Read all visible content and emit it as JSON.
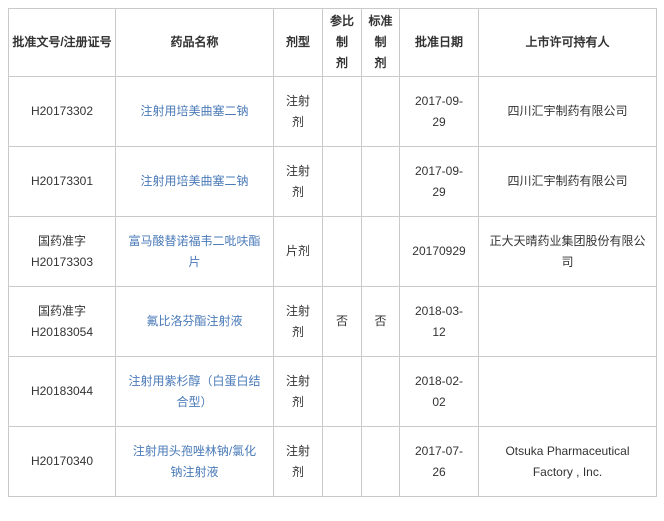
{
  "colors": {
    "border": "#c9c9c9",
    "text": "#333333",
    "link_blue": "#4a7ab8",
    "background": "#ffffff"
  },
  "table": {
    "headers": {
      "approval_no": "批准文号/注册证号",
      "drug_name": "药品名称",
      "dosage_form": "剂型",
      "reference_prep": "参比制\n剂",
      "standard_prep": "标准制\n剂",
      "approval_date": "批准日期",
      "license_holder": "上市许可持有人"
    },
    "rows": [
      {
        "approval_no": "H20173302",
        "drug_name": "注射用培美曲塞二钠",
        "dosage_form": "注射\n剂",
        "reference_prep": "",
        "standard_prep": "",
        "approval_date": "2017-09-\n29",
        "license_holder": "四川汇宇制药有限公司"
      },
      {
        "approval_no": "H20173301",
        "drug_name": "注射用培美曲塞二钠",
        "dosage_form": "注射\n剂",
        "reference_prep": "",
        "standard_prep": "",
        "approval_date": "2017-09-\n29",
        "license_holder": "四川汇宇制药有限公司"
      },
      {
        "approval_no": "国药准字\nH20173303",
        "drug_name": "富马酸替诺福韦二吡呋酯\n片",
        "dosage_form": "片剂",
        "reference_prep": "",
        "standard_prep": "",
        "approval_date": "20170929",
        "license_holder": "正大天晴药业集团股份有限公\n司"
      },
      {
        "approval_no": "国药准字\nH20183054",
        "drug_name": "氟比洛芬酯注射液",
        "dosage_form": "注射\n剂",
        "reference_prep": "否",
        "standard_prep": "否",
        "approval_date": "2018-03-\n12",
        "license_holder": ""
      },
      {
        "approval_no": "H20183044",
        "drug_name": "注射用紫杉醇（白蛋白结\n合型）",
        "dosage_form": "注射\n剂",
        "reference_prep": "",
        "standard_prep": "",
        "approval_date": "2018-02-\n02",
        "license_holder": ""
      },
      {
        "approval_no": "H20170340",
        "drug_name": "注射用头孢唑林钠/氯化\n钠注射液",
        "dosage_form": "注射\n剂",
        "reference_prep": "",
        "standard_prep": "",
        "approval_date": "2017-07-\n26",
        "license_holder": "Otsuka Pharmaceutical\nFactory , Inc."
      }
    ]
  }
}
